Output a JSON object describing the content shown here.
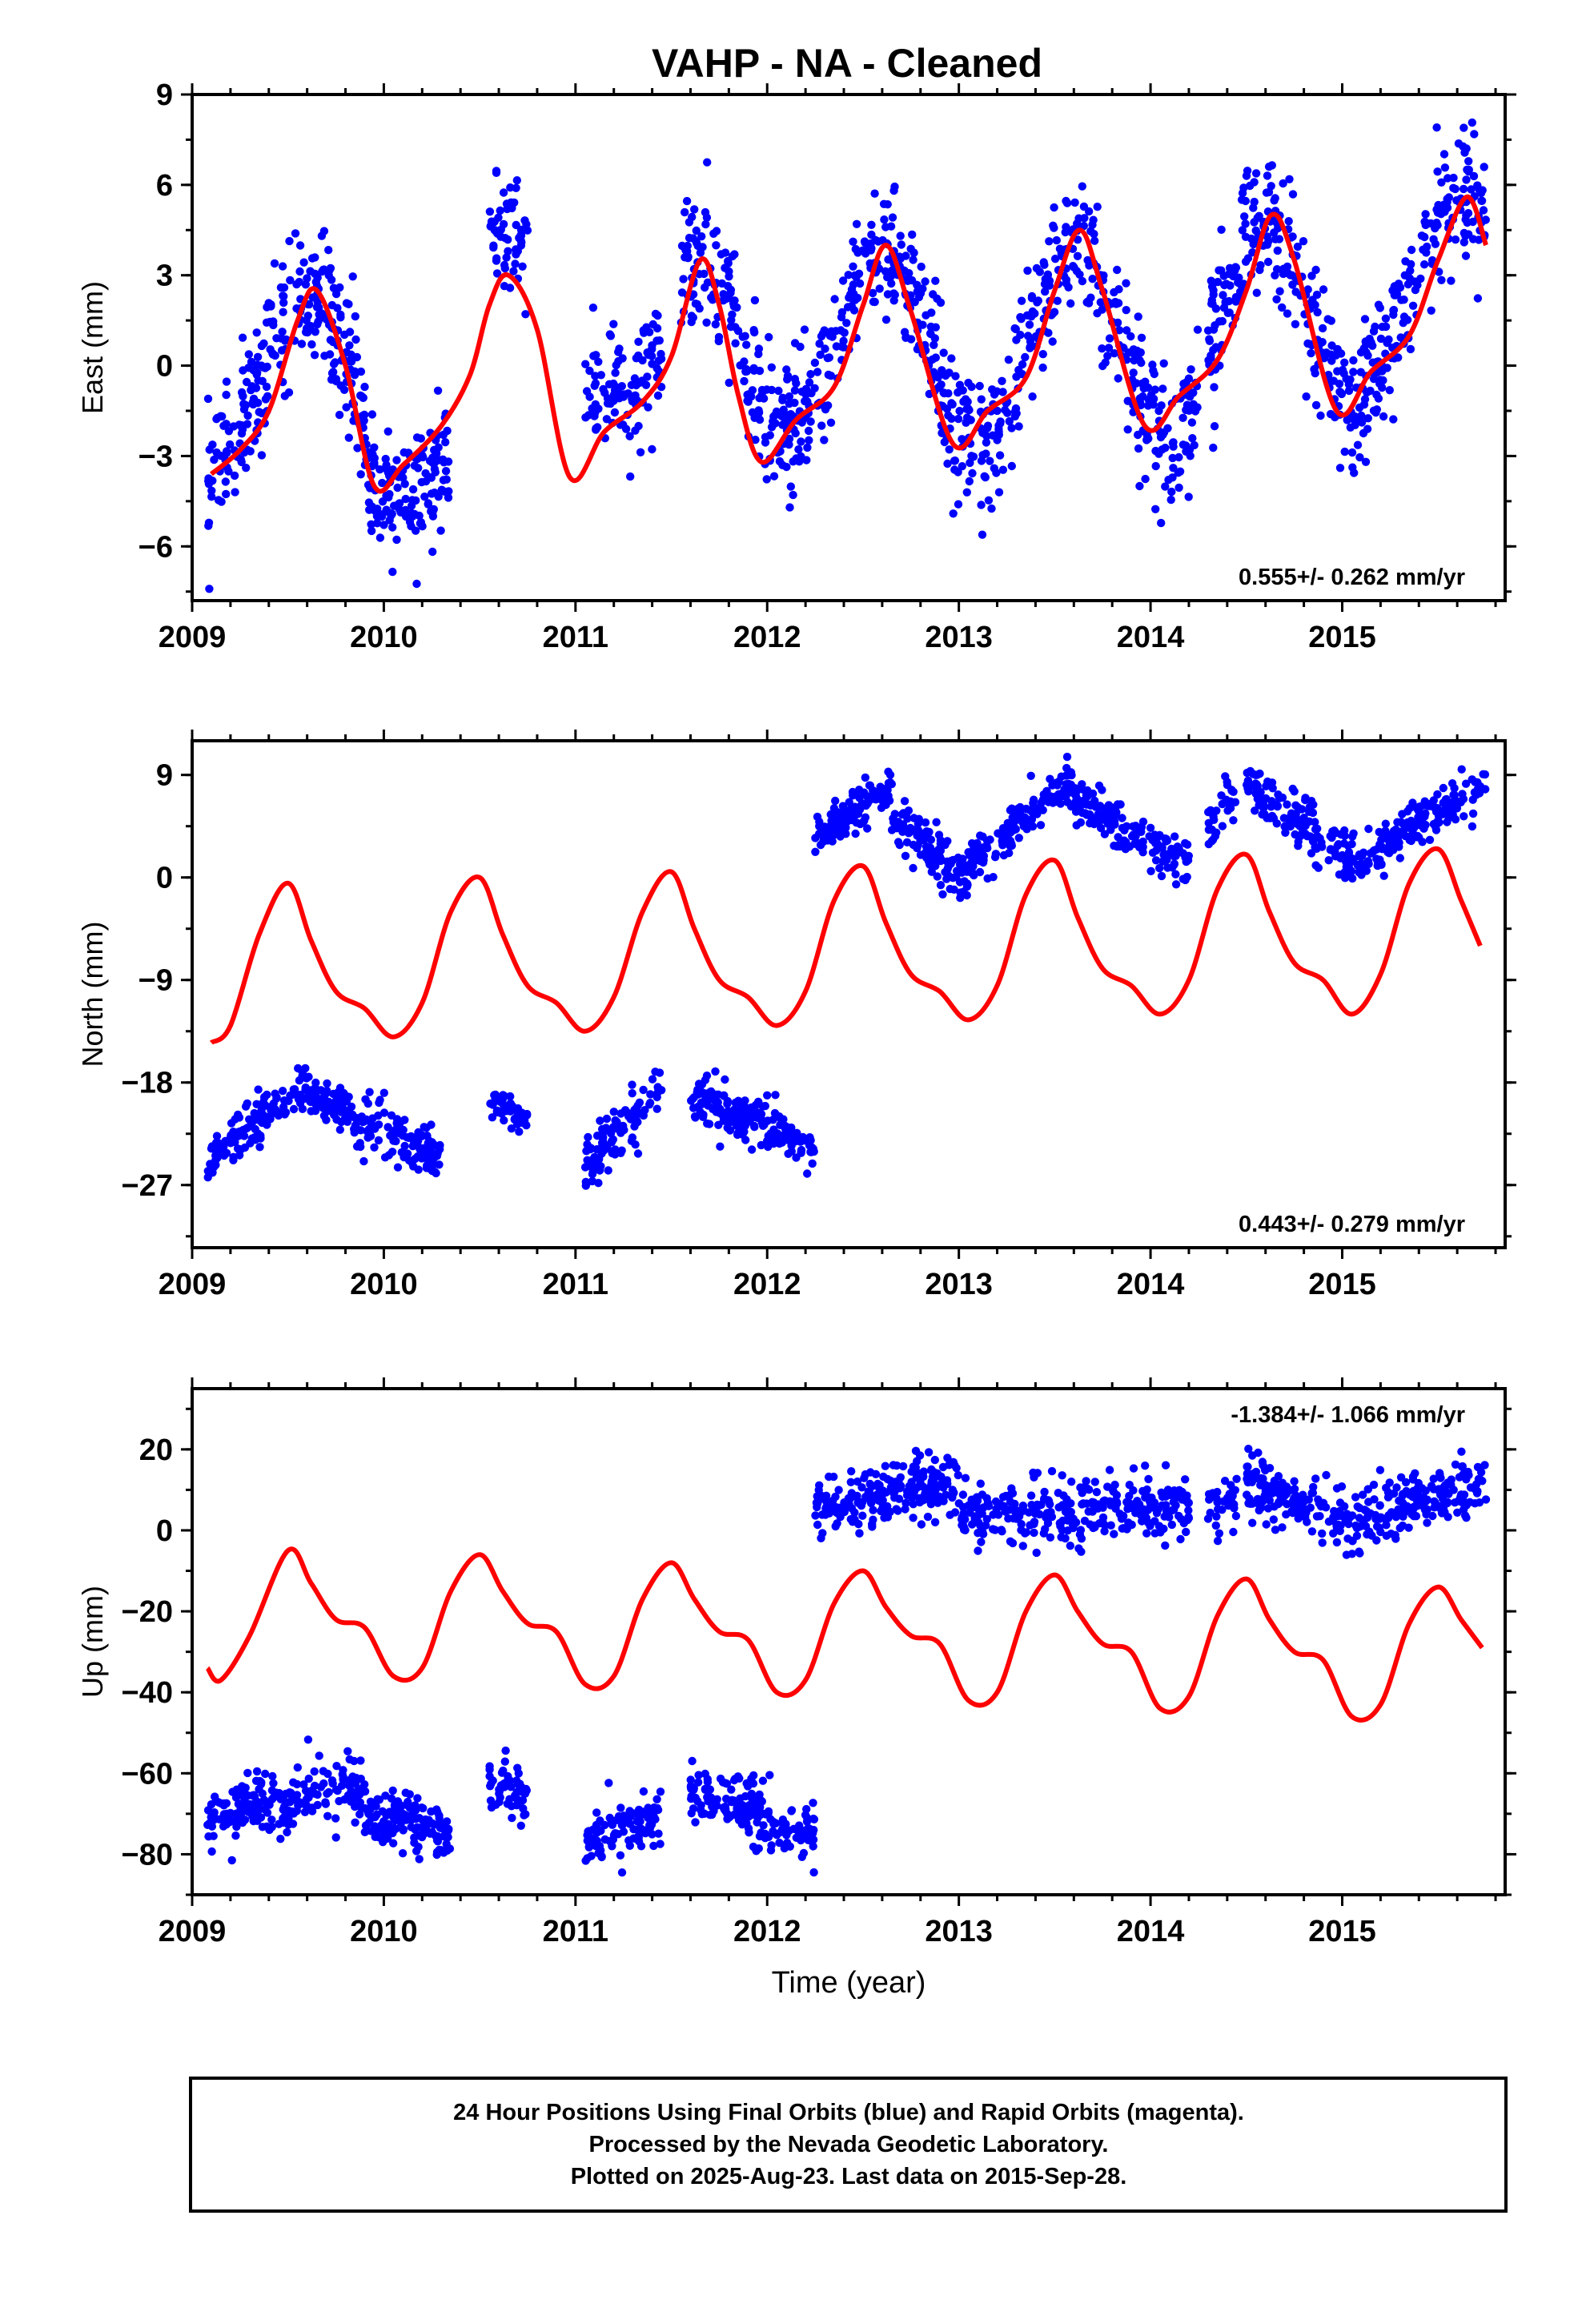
{
  "title": "VAHP  - NA - Cleaned",
  "caption": {
    "lines": [
      "24 Hour Positions Using Final Orbits (blue) and Rapid Orbits (magenta).",
      "Processed by the Nevada Geodetic Laboratory.",
      "Plotted on 2025-Aug-23. Last data on 2015-Sep-28."
    ]
  },
  "colors": {
    "data": "#0000ff",
    "model": "#ff0000",
    "axes": "#000000"
  },
  "chart_data": [
    {
      "type": "scatter",
      "ylabel": "East (mm)",
      "xlabel": "",
      "xlim": [
        2009.0,
        2015.85
      ],
      "ylim": [
        -7.8,
        9.0
      ],
      "xticks": [
        2009,
        2010,
        2011,
        2012,
        2013,
        2014,
        2015
      ],
      "yticks": [
        -6,
        -3,
        0,
        3,
        6,
        9
      ],
      "ytick_labels": [
        "−6",
        "−3",
        "0",
        "3",
        "6",
        "9"
      ],
      "rate_text": "0.555+/- 0.262 mm/yr",
      "rate_position": "bottom-right",
      "model": {
        "x": [
          2009.1,
          2009.25,
          2009.4,
          2009.55,
          2009.65,
          2009.8,
          2009.95,
          2010.1,
          2010.3,
          2010.45,
          2010.55,
          2010.65,
          2010.8,
          2010.97,
          2011.15,
          2011.35,
          2011.5,
          2011.65,
          2011.75,
          2011.85,
          2011.97,
          2012.15,
          2012.35,
          2012.5,
          2012.62,
          2012.75,
          2012.97,
          2013.15,
          2013.35,
          2013.5,
          2013.63,
          2013.75,
          2013.97,
          2014.15,
          2014.35,
          2014.5,
          2014.63,
          2014.75,
          2014.97,
          2015.15,
          2015.35,
          2015.5,
          2015.65,
          2015.75
        ],
        "y": [
          -3.6,
          -2.8,
          -1.5,
          1.5,
          2.5,
          0.0,
          -4.0,
          -3.3,
          -2.0,
          -0.3,
          2.0,
          3.0,
          1.2,
          -3.7,
          -2.2,
          -1.2,
          0.3,
          3.5,
          2.0,
          -1.0,
          -3.2,
          -1.8,
          -0.7,
          2.0,
          4.0,
          1.8,
          -2.6,
          -1.5,
          -0.4,
          2.5,
          4.5,
          2.5,
          -2.0,
          -1.0,
          0.2,
          2.5,
          5.0,
          3.5,
          -1.5,
          -0.2,
          1.0,
          3.5,
          5.6,
          4.0
        ]
      },
      "scatter": {
        "segments": [
          {
            "x": [
              2009.08,
              2009.9
            ],
            "base": -0.5,
            "amp": 3.0,
            "noise": 1.5,
            "count": 260
          },
          {
            "x": [
              2009.9,
              2010.35
            ],
            "base": -2.8,
            "amp": 1.8,
            "noise": 1.3,
            "count": 150
          },
          {
            "x": [
              2010.55,
              2010.75
            ],
            "base": 3.5,
            "amp": 0.8,
            "noise": 1.2,
            "count": 60
          },
          {
            "x": [
              2011.05,
              2011.45
            ],
            "base": -0.3,
            "amp": 1.0,
            "noise": 1.4,
            "count": 110
          },
          {
            "x": [
              2011.55,
              2012.3
            ],
            "base": 0.8,
            "amp": 2.8,
            "noise": 1.5,
            "count": 230
          },
          {
            "x": [
              2012.3,
              2013.25
            ],
            "base": 0.5,
            "amp": 3.2,
            "noise": 1.5,
            "count": 280
          },
          {
            "x": [
              2013.25,
              2014.25
            ],
            "base": 0.6,
            "amp": 3.0,
            "noise": 1.5,
            "count": 280
          },
          {
            "x": [
              2014.3,
              2015.1
            ],
            "base": 1.5,
            "amp": 3.3,
            "noise": 1.5,
            "count": 240
          },
          {
            "x": [
              2015.1,
              2015.75
            ],
            "base": 2.5,
            "amp": 3.0,
            "noise": 1.5,
            "count": 200
          }
        ]
      }
    },
    {
      "type": "scatter",
      "ylabel": "North (mm)",
      "xlabel": "",
      "xlim": [
        2009.0,
        2015.85
      ],
      "ylim": [
        -32.5,
        12.0
      ],
      "xticks": [
        2009,
        2010,
        2011,
        2012,
        2013,
        2014,
        2015
      ],
      "yticks": [
        -27,
        -18,
        -9,
        0,
        9
      ],
      "ytick_labels": [
        "−27",
        "−18",
        "−9",
        "0",
        "9"
      ],
      "rate_text": "0.443+/- 0.279 mm/yr",
      "rate_position": "bottom-right",
      "model": {
        "x": [
          2009.1,
          2009.2,
          2009.35,
          2009.5,
          2009.62,
          2009.75,
          2009.9,
          2010.05,
          2010.2,
          2010.35,
          2010.5,
          2010.62,
          2010.75,
          2010.9,
          2011.05,
          2011.2,
          2011.35,
          2011.5,
          2011.62,
          2011.75,
          2011.9,
          2012.05,
          2012.2,
          2012.35,
          2012.5,
          2012.62,
          2012.75,
          2012.9,
          2013.05,
          2013.2,
          2013.35,
          2013.5,
          2013.62,
          2013.75,
          2013.9,
          2014.05,
          2014.2,
          2014.35,
          2014.5,
          2014.62,
          2014.75,
          2014.9,
          2015.05,
          2015.2,
          2015.35,
          2015.5,
          2015.62,
          2015.72
        ],
        "y": [
          -14.5,
          -13.0,
          -5.0,
          -0.5,
          -5.5,
          -10.0,
          -11.5,
          -14.0,
          -11.0,
          -3.0,
          0.0,
          -5.0,
          -9.5,
          -11.0,
          -13.5,
          -10.5,
          -3.0,
          0.5,
          -4.5,
          -9.0,
          -10.5,
          -13.0,
          -10.0,
          -2.0,
          1.0,
          -4.0,
          -8.5,
          -10.0,
          -12.5,
          -9.5,
          -1.5,
          1.5,
          -3.5,
          -8.0,
          -9.5,
          -12.0,
          -9.0,
          -1.0,
          2.0,
          -3.0,
          -7.5,
          -9.0,
          -12.0,
          -8.5,
          -0.5,
          2.5,
          -2.0,
          -6.0
        ]
      },
      "scatter": {
        "segments": [
          {
            "x": [
              2009.08,
              2009.6
            ],
            "base": -22.0,
            "amp": 0.0,
            "noise": 1.5,
            "count": 130,
            "trend": [
              -25.0,
              -18.0
            ]
          },
          {
            "x": [
              2009.6,
              2010.3
            ],
            "base": -22.0,
            "amp": 0.0,
            "noise": 1.5,
            "count": 190,
            "trend": [
              -19.0,
              -25.0
            ]
          },
          {
            "x": [
              2010.55,
              2010.75
            ],
            "base": -20.5,
            "amp": 0.0,
            "noise": 1.0,
            "count": 50,
            "trend": [
              -19.5,
              -21.5
            ]
          },
          {
            "x": [
              2011.05,
              2011.45
            ],
            "base": -22.0,
            "amp": 0.0,
            "noise": 1.5,
            "count": 110,
            "trend": [
              -25.0,
              -18.5
            ]
          },
          {
            "x": [
              2011.6,
              2012.25
            ],
            "base": -22.0,
            "amp": 0.0,
            "noise": 1.4,
            "count": 190,
            "trend": [
              -19.0,
              -23.5
            ]
          },
          {
            "x": [
              2012.25,
              2012.65
            ],
            "base": 6.0,
            "amp": 0.0,
            "noise": 1.3,
            "count": 120,
            "trend": [
              3.5,
              8.0
            ]
          },
          {
            "x": [
              2012.65,
              2013.05
            ],
            "base": 2.5,
            "amp": 0.0,
            "noise": 1.4,
            "count": 120,
            "trend": [
              5.0,
              0.0
            ]
          },
          {
            "x": [
              2013.05,
              2013.6
            ],
            "base": 5.0,
            "amp": 0.0,
            "noise": 1.3,
            "count": 150,
            "trend": [
              1.0,
              8.5
            ]
          },
          {
            "x": [
              2013.6,
              2014.2
            ],
            "base": 3.0,
            "amp": 0.0,
            "noise": 1.4,
            "count": 160,
            "trend": [
              7.0,
              1.0
            ]
          },
          {
            "x": [
              2014.3,
              2014.45
            ],
            "base": 6.0,
            "amp": 0.0,
            "noise": 1.5,
            "count": 30,
            "trend": [
              4.0,
              7.5
            ]
          },
          {
            "x": [
              2014.5,
              2015.1
            ],
            "base": 4.0,
            "amp": 0.0,
            "noise": 1.5,
            "count": 160,
            "trend": [
              8.0,
              1.0
            ]
          },
          {
            "x": [
              2015.1,
              2015.75
            ],
            "base": 5.0,
            "amp": 0.0,
            "noise": 1.4,
            "count": 170,
            "trend": [
              1.5,
              8.5
            ]
          }
        ]
      }
    },
    {
      "type": "scatter",
      "ylabel": "Up (mm)",
      "xlabel": "Time (year)",
      "xlim": [
        2009.0,
        2015.85
      ],
      "ylim": [
        -90.0,
        35.0
      ],
      "xticks": [
        2009,
        2010,
        2011,
        2012,
        2013,
        2014,
        2015
      ],
      "yticks": [
        -80,
        -60,
        -40,
        -20,
        0,
        20
      ],
      "ytick_labels": [
        "−80",
        "−60",
        "−40",
        "−20",
        "0",
        "20"
      ],
      "rate_text": "-1.384+/- 1.066 mm/yr",
      "rate_position": "top-right",
      "model": {
        "x": [
          2009.08,
          2009.15,
          2009.3,
          2009.5,
          2009.62,
          2009.75,
          2009.9,
          2010.05,
          2010.2,
          2010.35,
          2010.5,
          2010.62,
          2010.75,
          2010.9,
          2011.05,
          2011.2,
          2011.35,
          2011.5,
          2011.62,
          2011.75,
          2011.9,
          2012.05,
          2012.2,
          2012.35,
          2012.5,
          2012.62,
          2012.75,
          2012.9,
          2013.05,
          2013.2,
          2013.35,
          2013.5,
          2013.62,
          2013.75,
          2013.9,
          2014.05,
          2014.2,
          2014.35,
          2014.5,
          2014.62,
          2014.75,
          2014.9,
          2015.05,
          2015.2,
          2015.35,
          2015.5,
          2015.62,
          2015.73
        ],
        "y": [
          -34.0,
          -37.0,
          -26.0,
          -5.0,
          -13.0,
          -22.0,
          -24.0,
          -36.0,
          -34.0,
          -15.0,
          -6.0,
          -15.0,
          -23.0,
          -25.0,
          -38.0,
          -36.0,
          -17.0,
          -8.0,
          -17.0,
          -25.0,
          -27.0,
          -40.0,
          -37.0,
          -18.0,
          -10.0,
          -19.0,
          -26.0,
          -28.0,
          -42.0,
          -40.0,
          -20.0,
          -11.0,
          -20.0,
          -28.0,
          -30.0,
          -44.0,
          -41.0,
          -21.0,
          -12.0,
          -22.0,
          -30.0,
          -32.0,
          -46.0,
          -43.0,
          -23.0,
          -14.0,
          -22.0,
          -29.0
        ]
      },
      "scatter": {
        "segments": [
          {
            "x": [
              2009.08,
              2009.9
            ],
            "base": -67.0,
            "amp": 0.0,
            "noise": 5.0,
            "count": 220,
            "trend": [
              -71.0,
              -63.0
            ]
          },
          {
            "x": [
              2009.9,
              2010.35
            ],
            "base": -72.0,
            "amp": 0.0,
            "noise": 4.5,
            "count": 140,
            "trend": [
              -70.0,
              -74.0
            ]
          },
          {
            "x": [
              2010.55,
              2010.75
            ],
            "base": -64.0,
            "amp": 0.0,
            "noise": 5.0,
            "count": 50,
            "trend": [
              -62.0,
              -66.0
            ]
          },
          {
            "x": [
              2011.05,
              2011.45
            ],
            "base": -74.0,
            "amp": 0.0,
            "noise": 5.0,
            "count": 110,
            "trend": [
              -76.0,
              -72.0
            ]
          },
          {
            "x": [
              2011.6,
              2012.25
            ],
            "base": -70.0,
            "amp": 0.0,
            "noise": 5.0,
            "count": 190,
            "trend": [
              -64.0,
              -76.0
            ]
          },
          {
            "x": [
              2012.25,
              2013.0
            ],
            "base": 10.0,
            "amp": 0.0,
            "noise": 5.0,
            "count": 220,
            "trend": [
              5.0,
              12.0
            ]
          },
          {
            "x": [
              2013.0,
              2014.2
            ],
            "base": 7.0,
            "amp": 0.0,
            "noise": 5.0,
            "count": 300,
            "trend": [
              4.0,
              6.0
            ]
          },
          {
            "x": [
              2014.3,
              2014.45
            ],
            "base": 6.0,
            "amp": 0.0,
            "noise": 5.0,
            "count": 30,
            "trend": [
              4.0,
              8.0
            ]
          },
          {
            "x": [
              2014.5,
              2015.1
            ],
            "base": 7.0,
            "amp": 0.0,
            "noise": 5.0,
            "count": 160,
            "trend": [
              12.0,
              1.0
            ]
          },
          {
            "x": [
              2015.1,
              2015.75
            ],
            "base": 8.0,
            "amp": 0.0,
            "noise": 5.0,
            "count": 170,
            "trend": [
              3.0,
              12.0
            ]
          }
        ]
      }
    }
  ]
}
